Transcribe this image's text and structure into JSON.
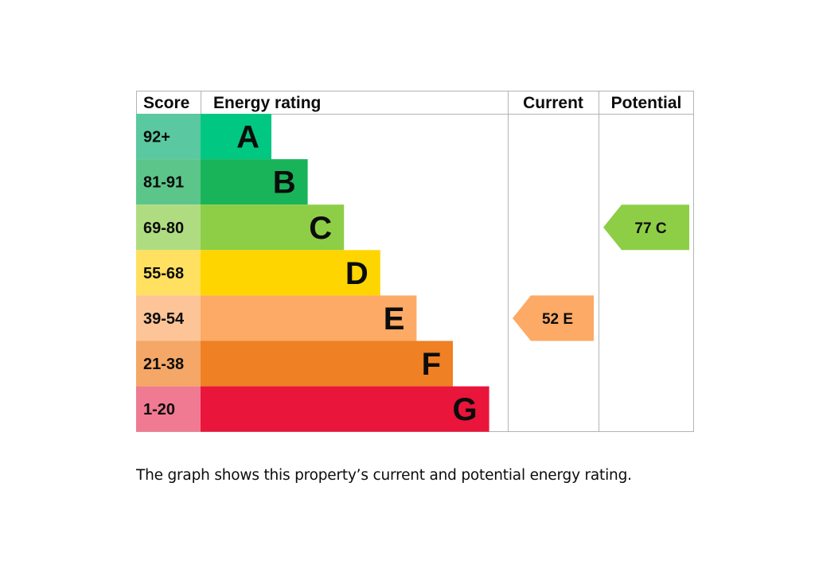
{
  "headers": {
    "score": "Score",
    "energy_rating": "Energy rating",
    "current": "Current",
    "potential": "Potential"
  },
  "caption": "The graph shows this property’s current and potential energy rating.",
  "chart_data": {
    "type": "bar",
    "bands": [
      {
        "letter": "A",
        "score_range": "92+",
        "color": "#00c781",
        "score_color": "#5ac8a0"
      },
      {
        "letter": "B",
        "score_range": "81-91",
        "color": "#19b459",
        "score_color": "#5cc58a"
      },
      {
        "letter": "C",
        "score_range": "69-80",
        "color": "#8dce46",
        "score_color": "#b0dc81"
      },
      {
        "letter": "D",
        "score_range": "55-68",
        "color": "#ffd500",
        "score_color": "#ffe060"
      },
      {
        "letter": "E",
        "score_range": "39-54",
        "color": "#fcaa65",
        "score_color": "#fdc497"
      },
      {
        "letter": "F",
        "score_range": "21-38",
        "color": "#ef8023",
        "score_color": "#f4a766"
      },
      {
        "letter": "G",
        "score_range": "1-20",
        "color": "#e9153b",
        "score_color": "#f07a92"
      }
    ],
    "current": {
      "score": 52,
      "band": "E",
      "label": "52 E",
      "color": "#fcaa65"
    },
    "potential": {
      "score": 77,
      "band": "C",
      "label": "77 C",
      "color": "#8dce46"
    }
  }
}
